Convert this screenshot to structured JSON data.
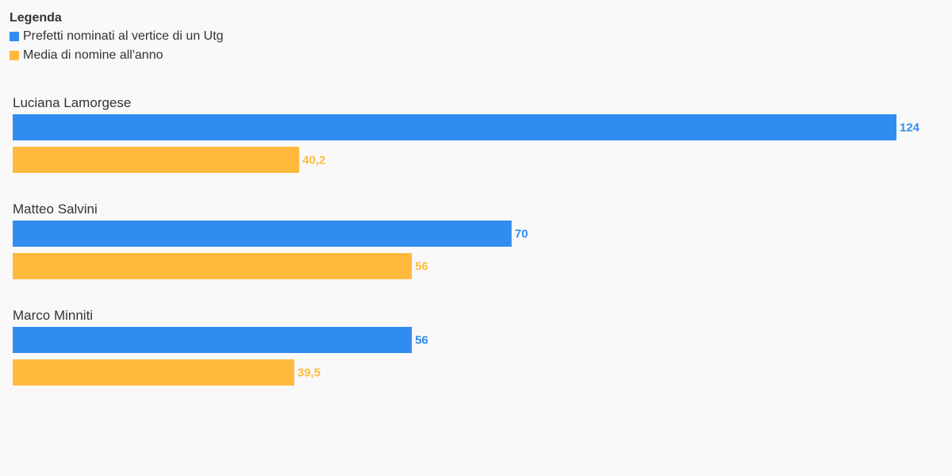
{
  "legend": {
    "title": "Legenda",
    "items": [
      {
        "label": "Prefetti nominati al vertice di un Utg",
        "color": "#318cf1"
      },
      {
        "label": "Media di nomine all'anno",
        "color": "#ffb93c"
      }
    ]
  },
  "chart_data": {
    "type": "bar",
    "orientation": "horizontal",
    "categories": [
      "Luciana Lamorgese",
      "Matteo Salvini",
      "Marco Minniti"
    ],
    "series": [
      {
        "name": "Prefetti nominati al vertice di un Utg",
        "color": "#318cf1",
        "values": [
          124,
          70,
          56
        ],
        "labels": [
          "124",
          "70",
          "56"
        ]
      },
      {
        "name": "Media di nomine all'anno",
        "color": "#ffb93c",
        "values": [
          40.2,
          56,
          39.5
        ],
        "labels": [
          "40,2",
          "56",
          "39,5"
        ]
      }
    ],
    "xlim": [
      0,
      124
    ],
    "grid": false,
    "legend_position": "top-left"
  }
}
